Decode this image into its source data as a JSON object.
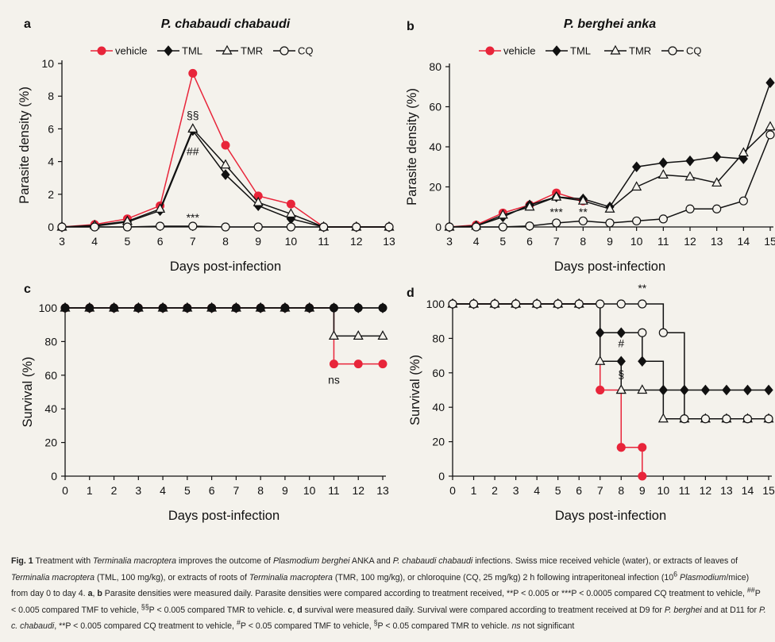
{
  "colors": {
    "vehicle": "#e8253a",
    "ink": "#111111",
    "background": "#f4f2ec"
  },
  "chart_data": [
    {
      "panel": "a",
      "type": "line",
      "title": "P. chabaudi chabaudi",
      "xlabel": "Days post-infection",
      "ylabel": "Parasite density (%)",
      "xlim": [
        3,
        13
      ],
      "ylim": [
        0,
        10
      ],
      "xticks": [
        3,
        4,
        5,
        6,
        7,
        8,
        9,
        10,
        11,
        12,
        13
      ],
      "yticks": [
        0,
        2,
        4,
        6,
        8,
        10
      ],
      "legend": {
        "placement": "top",
        "entries": [
          "vehicle",
          "TML",
          "TMR",
          "CQ"
        ]
      },
      "series": [
        {
          "name": "vehicle",
          "marker": "circle-filled",
          "color": "#e8253a",
          "x": [
            3,
            4,
            5,
            6,
            7,
            8,
            9,
            10,
            11,
            12,
            13
          ],
          "y": [
            0,
            0.15,
            0.5,
            1.3,
            9.4,
            5.0,
            1.9,
            1.4,
            0,
            0,
            0
          ]
        },
        {
          "name": "TML",
          "marker": "diamond-filled",
          "color": "#111111",
          "x": [
            3,
            4,
            5,
            6,
            7,
            8,
            9,
            10,
            11,
            12,
            13
          ],
          "y": [
            0,
            0.05,
            0.3,
            1.0,
            5.9,
            3.2,
            1.3,
            0.5,
            0,
            0,
            0
          ]
        },
        {
          "name": "TMR",
          "marker": "triangle-open",
          "color": "#111111",
          "x": [
            3,
            4,
            5,
            6,
            7,
            8,
            9,
            10,
            11,
            12,
            13
          ],
          "y": [
            0,
            0.1,
            0.35,
            1.1,
            6.0,
            3.8,
            1.5,
            0.8,
            0,
            0,
            0
          ]
        },
        {
          "name": "CQ",
          "marker": "circle-open",
          "color": "#111111",
          "x": [
            3,
            4,
            5,
            6,
            7,
            8,
            9,
            10,
            11,
            12,
            13
          ],
          "y": [
            0,
            0,
            0,
            0.05,
            0.05,
            0,
            0,
            0,
            0,
            0,
            0
          ]
        }
      ],
      "annotations": [
        {
          "text": "§§",
          "x": 7,
          "y": 6.6
        },
        {
          "text": "##",
          "x": 7,
          "y": 4.4
        },
        {
          "text": "***",
          "x": 7,
          "y": 0.35
        }
      ]
    },
    {
      "panel": "b",
      "type": "line",
      "title": "P. berghei anka",
      "xlabel": "Days post-infection",
      "ylabel": "Parasite density (%)",
      "xlim": [
        3,
        15
      ],
      "ylim": [
        0,
        80
      ],
      "xticks": [
        3,
        4,
        5,
        6,
        7,
        8,
        9,
        10,
        11,
        12,
        13,
        14,
        15
      ],
      "yticks": [
        0,
        20,
        40,
        60,
        80
      ],
      "legend": {
        "placement": "top",
        "entries": [
          "vehicle",
          "TML",
          "TMR",
          "CQ"
        ]
      },
      "series": [
        {
          "name": "vehicle",
          "marker": "circle-filled",
          "color": "#e8253a",
          "x": [
            3,
            4,
            5,
            6,
            7,
            8
          ],
          "y": [
            0,
            1,
            7,
            11,
            17,
            13
          ]
        },
        {
          "name": "TML",
          "marker": "diamond-filled",
          "color": "#111111",
          "x": [
            3,
            4,
            5,
            6,
            7,
            8,
            9,
            10,
            11,
            12,
            13,
            14,
            15
          ],
          "y": [
            0,
            0.5,
            5,
            11,
            15,
            14,
            10,
            30,
            32,
            33,
            35,
            34,
            72
          ]
        },
        {
          "name": "TMR",
          "marker": "triangle-open",
          "color": "#111111",
          "x": [
            3,
            4,
            5,
            6,
            7,
            8,
            9,
            10,
            11,
            12,
            13,
            14,
            15
          ],
          "y": [
            0,
            0.5,
            6,
            10,
            15,
            13,
            9,
            20,
            26,
            25,
            22,
            37,
            50
          ]
        },
        {
          "name": "CQ",
          "marker": "circle-open",
          "color": "#111111",
          "x": [
            3,
            4,
            5,
            6,
            7,
            8,
            9,
            10,
            11,
            12,
            13,
            14,
            15
          ],
          "y": [
            0,
            0,
            0,
            0.5,
            2,
            3,
            2,
            3,
            4,
            9,
            9,
            13,
            46
          ]
        }
      ],
      "annotations": [
        {
          "text": "***",
          "x": 7,
          "y": 5.5
        },
        {
          "text": "**",
          "x": 8,
          "y": 5.5
        }
      ]
    },
    {
      "panel": "c",
      "type": "line",
      "title": "",
      "xlabel": "Days post-infection",
      "ylabel": "Survival (%)",
      "xlim": [
        0,
        13
      ],
      "ylim": [
        0,
        100
      ],
      "xticks": [
        0,
        1,
        2,
        3,
        4,
        5,
        6,
        7,
        8,
        9,
        10,
        11,
        12,
        13
      ],
      "yticks": [
        0,
        20,
        40,
        60,
        80,
        100
      ],
      "series": [
        {
          "name": "vehicle",
          "marker": "circle-filled",
          "color": "#e8253a",
          "step": true,
          "x": [
            0,
            1,
            2,
            3,
            4,
            5,
            6,
            7,
            8,
            9,
            10,
            11,
            12,
            13
          ],
          "y": [
            100,
            100,
            100,
            100,
            100,
            100,
            100,
            100,
            100,
            100,
            100,
            66.7,
            66.7,
            66.7
          ]
        },
        {
          "name": "TMR",
          "marker": "triangle-open",
          "color": "#111111",
          "step": true,
          "x": [
            0,
            1,
            2,
            3,
            4,
            5,
            6,
            7,
            8,
            9,
            10,
            11,
            12,
            13
          ],
          "y": [
            100,
            100,
            100,
            100,
            100,
            100,
            100,
            100,
            100,
            100,
            100,
            83.3,
            83.3,
            83.3
          ]
        },
        {
          "name": "TML",
          "marker": "diamond-filled",
          "color": "#111111",
          "step": true,
          "x": [
            0,
            1,
            2,
            3,
            4,
            5,
            6,
            7,
            8,
            9,
            10,
            11,
            12,
            13
          ],
          "y": [
            100,
            100,
            100,
            100,
            100,
            100,
            100,
            100,
            100,
            100,
            100,
            100,
            100,
            100
          ]
        },
        {
          "name": "CQ",
          "marker": "circle-filled",
          "color": "#111111",
          "step": true,
          "x": [
            0,
            1,
            2,
            3,
            4,
            5,
            6,
            7,
            8,
            9,
            10,
            11,
            12,
            13
          ],
          "y": [
            100,
            100,
            100,
            100,
            100,
            100,
            100,
            100,
            100,
            100,
            100,
            100,
            100,
            100
          ]
        }
      ],
      "annotations": [
        {
          "text": "ns",
          "x": 11,
          "y": 55
        }
      ]
    },
    {
      "panel": "d",
      "type": "line",
      "title": "",
      "xlabel": "Days post-infection",
      "ylabel": "Survival (%)",
      "xlim": [
        0,
        15
      ],
      "ylim": [
        0,
        100
      ],
      "xticks": [
        0,
        1,
        2,
        3,
        4,
        5,
        6,
        7,
        8,
        9,
        10,
        11,
        12,
        13,
        14,
        15
      ],
      "yticks": [
        0,
        20,
        40,
        60,
        80,
        100
      ],
      "series": [
        {
          "name": "vehicle",
          "marker": "circle-filled",
          "color": "#e8253a",
          "step": true,
          "x": [
            0,
            1,
            2,
            3,
            4,
            5,
            6,
            7,
            8,
            9
          ],
          "y": [
            100,
            100,
            100,
            100,
            100,
            100,
            100,
            50,
            16.7,
            0
          ]
        },
        {
          "name": "TMR",
          "marker": "triangle-open",
          "color": "#111111",
          "step": true,
          "x": [
            0,
            1,
            2,
            3,
            4,
            5,
            6,
            7,
            8,
            9,
            10,
            11,
            12,
            13,
            14,
            15
          ],
          "y": [
            100,
            100,
            100,
            100,
            100,
            100,
            100,
            66.7,
            50,
            50,
            33.3,
            33.3,
            33.3,
            33.3,
            33.3,
            33.3
          ]
        },
        {
          "name": "TML",
          "marker": "diamond-filled",
          "color": "#111111",
          "step": true,
          "x": [
            0,
            1,
            2,
            3,
            4,
            5,
            6,
            7,
            8,
            9,
            10,
            11,
            12,
            13,
            14,
            15
          ],
          "y": [
            100,
            100,
            100,
            100,
            100,
            100,
            100,
            83.3,
            83.3,
            66.7,
            50,
            50,
            50,
            50,
            50,
            50
          ]
        },
        {
          "name": "CQ",
          "marker": "circle-open",
          "color": "#111111",
          "step": true,
          "x": [
            0,
            1,
            2,
            3,
            4,
            5,
            6,
            7,
            8,
            9,
            10,
            11,
            12,
            13,
            14,
            15
          ],
          "y": [
            100,
            100,
            100,
            100,
            100,
            100,
            100,
            100,
            100,
            100,
            83.3,
            33.3,
            33.3,
            33.3,
            33.3,
            33.3
          ]
        }
      ],
      "extra_points": [
        {
          "series": "vehicle",
          "x": 7,
          "y": 50
        },
        {
          "series": "vehicle",
          "x": 8,
          "y": 16.7
        },
        {
          "series": "vehicle",
          "x": 9,
          "y": 16.7
        },
        {
          "series": "CQ",
          "x": 9,
          "y": 83.3
        },
        {
          "series": "TML",
          "x": 8,
          "y": 66.7
        },
        {
          "series": "TMR",
          "x": 8,
          "y": 50
        }
      ],
      "annotations": [
        {
          "text": "**",
          "x": 9,
          "y": 107
        },
        {
          "text": "#",
          "x": 8,
          "y": 75
        },
        {
          "text": "§",
          "x": 8,
          "y": 57
        }
      ]
    }
  ],
  "caption": {
    "fig_label": "Fig. 1",
    "parts": [
      {
        "t": "Treatment with ",
        "s": ""
      },
      {
        "t": "Terminalia macroptera",
        "s": "i"
      },
      {
        "t": " improves the outcome of ",
        "s": ""
      },
      {
        "t": "Plasmodium berghei",
        "s": "i"
      },
      {
        "t": " ANKA and ",
        "s": ""
      },
      {
        "t": "P. chabaudi chabaudi",
        "s": "i"
      },
      {
        "t": " infections. Swiss mice received vehicle (water), or extracts of leaves of ",
        "s": ""
      },
      {
        "t": "Terminalia macroptera",
        "s": "i"
      },
      {
        "t": " (TML, 100 mg/kg), or extracts of roots of ",
        "s": ""
      },
      {
        "t": "Terminalia macroptera",
        "s": "i"
      },
      {
        "t": " (TMR, 100 mg/kg), or chloroquine (CQ, 25 mg/kg) 2 h following intraperitoneal infection (10",
        "s": ""
      },
      {
        "t": "6",
        "s": "sup"
      },
      {
        "t": " ",
        "s": ""
      },
      {
        "t": "Plasmodium",
        "s": "i"
      },
      {
        "t": "/mice) from day 0 to day 4. ",
        "s": ""
      },
      {
        "t": "a",
        "s": "b"
      },
      {
        "t": ", ",
        "s": ""
      },
      {
        "t": "b",
        "s": "b"
      },
      {
        "t": " Parasite densities were measured daily. Parasite densities were compared according to treatment received, **P < 0.005 or ***P < 0.0005 compared CQ treatment to vehicle, ",
        "s": ""
      },
      {
        "t": "##",
        "s": "sup"
      },
      {
        "t": "P < 0.005 compared TMF to vehicle, ",
        "s": ""
      },
      {
        "t": "§§",
        "s": "sup"
      },
      {
        "t": "P < 0.005 compared TMR to vehicle. ",
        "s": ""
      },
      {
        "t": "c",
        "s": "b"
      },
      {
        "t": ", ",
        "s": ""
      },
      {
        "t": "d",
        "s": "b"
      },
      {
        "t": " survival were measured daily. Survival were compared according to treatment received at D9 for ",
        "s": ""
      },
      {
        "t": "P. berghei",
        "s": "i"
      },
      {
        "t": " and at D11 for ",
        "s": ""
      },
      {
        "t": "P. c. chabaudi",
        "s": "i"
      },
      {
        "t": ", **P < 0.005 compared CQ treatment to vehicle, ",
        "s": ""
      },
      {
        "t": "#",
        "s": "sup"
      },
      {
        "t": "P < 0.05 compared TMF to vehicle, ",
        "s": ""
      },
      {
        "t": "§",
        "s": "sup"
      },
      {
        "t": "P < 0.05 compared TMR to vehicle. ",
        "s": ""
      },
      {
        "t": "ns",
        "s": "i"
      },
      {
        "t": " not significant",
        "s": ""
      }
    ]
  }
}
